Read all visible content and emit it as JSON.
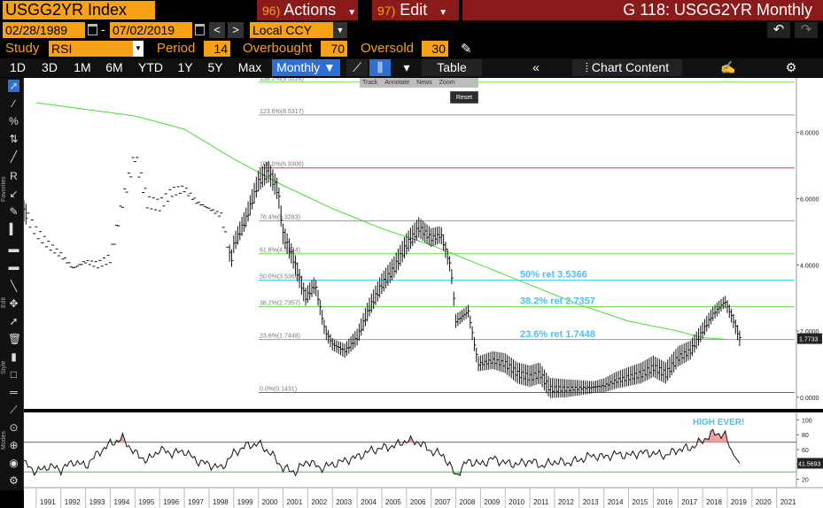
{
  "header": {
    "ticker": "USGG2YR Index",
    "actions_num": "96)",
    "actions_label": "Actions",
    "edit_num": "97)",
    "edit_label": "Edit",
    "graph_title": "G 118: USGG2YR Monthly"
  },
  "dates": {
    "start": "02/28/1989",
    "separator": "-",
    "end": "07/02/2019",
    "currency": "Local CCY"
  },
  "study": {
    "study_label": "Study",
    "study_value": "RSI",
    "period_label": "Period",
    "period_value": "14",
    "overbought_label": "Overbought",
    "overbought_value": "70",
    "oversold_label": "Oversold",
    "oversold_value": "30"
  },
  "toolbar": {
    "periods": [
      "1D",
      "3D",
      "1M",
      "6M",
      "YTD",
      "1Y",
      "5Y",
      "Max"
    ],
    "frequency": "Monthly",
    "table_label": "Table",
    "chart_content_label": "Chart Content"
  },
  "overlay": {
    "items": [
      "Track",
      "Annotate",
      "News",
      "Zoom"
    ],
    "reset": "Reset"
  },
  "left_tools": {
    "sections": [
      "Favorites",
      "Edit",
      "Style",
      "Modes"
    ]
  },
  "chart_data": [
    {
      "type": "line",
      "y_ticks": [
        "0.0000",
        "2.0000",
        "4.0000",
        "6.0000",
        "8.0000"
      ],
      "ylim": [
        -0.35,
        9.65
      ],
      "x_ticks": [
        "1991",
        "1992",
        "1993",
        "1994",
        "1995",
        "1996",
        "1997",
        "1998",
        "1999",
        "2000",
        "2001",
        "2002",
        "2003",
        "2004",
        "2005",
        "2006",
        "2007",
        "2008",
        "2009",
        "2010",
        "2011",
        "2012",
        "2013",
        "2014",
        "2015",
        "2016",
        "2017",
        "2018",
        "2019",
        "2020",
        "2021"
      ],
      "xlim": [
        1990.5,
        2021.8
      ],
      "last_value_label": "1.7733",
      "last_value": 1.7733,
      "fib_levels": [
        {
          "label": "138.2%(9.5226)",
          "value": 9.5226,
          "color": "#66dd44"
        },
        {
          "label": "123.6%(8.5317)",
          "value": 8.5317,
          "color": "#999999"
        },
        {
          "label": "100.0%(6.9300)",
          "value": 6.93,
          "color": "#ee3333"
        },
        {
          "label": "76.4%(5.3283)",
          "value": 5.3283,
          "color": "#999999"
        },
        {
          "label": "61.8%(4.3374)",
          "value": 4.3374,
          "color": "#66dd44"
        },
        {
          "label": "50.0%(3.5366)",
          "value": 3.5366,
          "color": "#33ccee"
        },
        {
          "label": "38.2%(2.7357)",
          "value": 2.7357,
          "color": "#66dd44"
        },
        {
          "label": "23.6%(1.7448)",
          "value": 1.7448,
          "color": "#999999"
        },
        {
          "label": "0.0%(0.1431)",
          "value": 0.1431,
          "color": "#ee3333"
        }
      ],
      "annotations": [
        {
          "text": "50% ret 3.5366",
          "x": 2010.6,
          "y": 3.62
        },
        {
          "text": "38.2% ret 2.7357",
          "x": 2010.6,
          "y": 2.82
        },
        {
          "text": "23.6% ret 1.7448",
          "x": 2010.6,
          "y": 1.82
        }
      ],
      "price_series": [
        {
          "x": 1989.0,
          "y": 7.0
        },
        {
          "x": 1989.5,
          "y": 6.8
        },
        {
          "x": 1990.0,
          "y": 6.4
        },
        {
          "x": 1990.5,
          "y": 5.6
        },
        {
          "x": 1991.0,
          "y": 5.0
        },
        {
          "x": 1991.5,
          "y": 4.6
        },
        {
          "x": 1992.0,
          "y": 4.3
        },
        {
          "x": 1992.5,
          "y": 3.9
        },
        {
          "x": 1993.0,
          "y": 4.1
        },
        {
          "x": 1993.5,
          "y": 4.0
        },
        {
          "x": 1994.0,
          "y": 4.2
        },
        {
          "x": 1994.5,
          "y": 5.9
        },
        {
          "x": 1995.0,
          "y": 7.3
        },
        {
          "x": 1995.5,
          "y": 5.9
        },
        {
          "x": 1996.0,
          "y": 5.8
        },
        {
          "x": 1996.5,
          "y": 6.2
        },
        {
          "x": 1997.0,
          "y": 6.3
        },
        {
          "x": 1997.5,
          "y": 5.9
        },
        {
          "x": 1998.0,
          "y": 5.7
        },
        {
          "x": 1998.5,
          "y": 5.5
        },
        {
          "x": 1998.9,
          "y": 4.1
        },
        {
          "x": 1999.0,
          "y": 4.6
        },
        {
          "x": 1999.5,
          "y": 5.4
        },
        {
          "x": 2000.0,
          "y": 6.5
        },
        {
          "x": 2000.4,
          "y": 6.8
        },
        {
          "x": 2000.8,
          "y": 6.2
        },
        {
          "x": 2001.0,
          "y": 4.9
        },
        {
          "x": 2001.4,
          "y": 4.2
        },
        {
          "x": 2001.9,
          "y": 3.0
        },
        {
          "x": 2002.3,
          "y": 3.4
        },
        {
          "x": 2002.7,
          "y": 2.0
        },
        {
          "x": 2003.0,
          "y": 1.6
        },
        {
          "x": 2003.5,
          "y": 1.4
        },
        {
          "x": 2004.0,
          "y": 1.8
        },
        {
          "x": 2004.5,
          "y": 2.7
        },
        {
          "x": 2005.0,
          "y": 3.4
        },
        {
          "x": 2005.5,
          "y": 3.9
        },
        {
          "x": 2006.0,
          "y": 4.6
        },
        {
          "x": 2006.5,
          "y": 5.1
        },
        {
          "x": 2007.0,
          "y": 4.8
        },
        {
          "x": 2007.4,
          "y": 4.9
        },
        {
          "x": 2007.8,
          "y": 3.9
        },
        {
          "x": 2008.0,
          "y": 2.3
        },
        {
          "x": 2008.5,
          "y": 2.6
        },
        {
          "x": 2008.9,
          "y": 1.0
        },
        {
          "x": 2009.5,
          "y": 1.1
        },
        {
          "x": 2010.0,
          "y": 1.0
        },
        {
          "x": 2010.5,
          "y": 0.7
        },
        {
          "x": 2011.0,
          "y": 0.6
        },
        {
          "x": 2011.4,
          "y": 0.7
        },
        {
          "x": 2011.8,
          "y": 0.25
        },
        {
          "x": 2012.5,
          "y": 0.25
        },
        {
          "x": 2013.5,
          "y": 0.3
        },
        {
          "x": 2014.0,
          "y": 0.35
        },
        {
          "x": 2014.5,
          "y": 0.5
        },
        {
          "x": 2015.0,
          "y": 0.6
        },
        {
          "x": 2015.5,
          "y": 0.7
        },
        {
          "x": 2016.0,
          "y": 0.9
        },
        {
          "x": 2016.5,
          "y": 0.7
        },
        {
          "x": 2017.0,
          "y": 1.2
        },
        {
          "x": 2017.5,
          "y": 1.4
        },
        {
          "x": 2018.0,
          "y": 2.0
        },
        {
          "x": 2018.4,
          "y": 2.5
        },
        {
          "x": 2018.9,
          "y": 2.9
        },
        {
          "x": 2019.2,
          "y": 2.4
        },
        {
          "x": 2019.5,
          "y": 1.77
        }
      ],
      "moving_average": [
        {
          "x": 1991.0,
          "y": 8.9
        },
        {
          "x": 1993.0,
          "y": 8.7
        },
        {
          "x": 1995.0,
          "y": 8.5
        },
        {
          "x": 1997.0,
          "y": 8.1
        },
        {
          "x": 1999.0,
          "y": 7.2
        },
        {
          "x": 2001.0,
          "y": 6.4
        },
        {
          "x": 2003.0,
          "y": 5.7
        },
        {
          "x": 2005.0,
          "y": 5.1
        },
        {
          "x": 2007.0,
          "y": 4.6
        },
        {
          "x": 2009.0,
          "y": 4.0
        },
        {
          "x": 2011.0,
          "y": 3.4
        },
        {
          "x": 2013.0,
          "y": 2.8
        },
        {
          "x": 2015.0,
          "y": 2.3
        },
        {
          "x": 2017.0,
          "y": 2.0
        },
        {
          "x": 2018.0,
          "y": 1.8
        },
        {
          "x": 2019.0,
          "y": 1.75
        }
      ]
    },
    {
      "type": "line",
      "title": "RSI",
      "y_ticks": [
        "20",
        "40",
        "60",
        "80",
        "100"
      ],
      "ylim": [
        10,
        110
      ],
      "overbought": 70,
      "oversold": 30,
      "last_value_label": "41.5693",
      "last_value": 41.5693,
      "annotation": "HIGH EVER!",
      "rsi_series": [
        {
          "x": 1989.0,
          "y": 40
        },
        {
          "x": 1989.5,
          "y": 45
        },
        {
          "x": 1990.0,
          "y": 55
        },
        {
          "x": 1990.5,
          "y": 42
        },
        {
          "x": 1991.0,
          "y": 30
        },
        {
          "x": 1991.5,
          "y": 38
        },
        {
          "x": 1992.0,
          "y": 33
        },
        {
          "x": 1992.5,
          "y": 44
        },
        {
          "x": 1993.0,
          "y": 38
        },
        {
          "x": 1993.5,
          "y": 55
        },
        {
          "x": 1994.0,
          "y": 68
        },
        {
          "x": 1994.5,
          "y": 75
        },
        {
          "x": 1995.0,
          "y": 55
        },
        {
          "x": 1995.5,
          "y": 45
        },
        {
          "x": 1996.0,
          "y": 60
        },
        {
          "x": 1996.5,
          "y": 55
        },
        {
          "x": 1997.0,
          "y": 58
        },
        {
          "x": 1997.5,
          "y": 45
        },
        {
          "x": 1998.0,
          "y": 40
        },
        {
          "x": 1998.5,
          "y": 35
        },
        {
          "x": 1999.0,
          "y": 55
        },
        {
          "x": 1999.5,
          "y": 65
        },
        {
          "x": 2000.0,
          "y": 68
        },
        {
          "x": 2000.5,
          "y": 55
        },
        {
          "x": 2001.0,
          "y": 35
        },
        {
          "x": 2001.5,
          "y": 30
        },
        {
          "x": 2002.0,
          "y": 45
        },
        {
          "x": 2002.5,
          "y": 35
        },
        {
          "x": 2003.0,
          "y": 40
        },
        {
          "x": 2003.5,
          "y": 45
        },
        {
          "x": 2004.0,
          "y": 50
        },
        {
          "x": 2004.5,
          "y": 58
        },
        {
          "x": 2005.0,
          "y": 62
        },
        {
          "x": 2005.5,
          "y": 65
        },
        {
          "x": 2006.0,
          "y": 72
        },
        {
          "x": 2006.5,
          "y": 70
        },
        {
          "x": 2007.0,
          "y": 58
        },
        {
          "x": 2007.5,
          "y": 52
        },
        {
          "x": 2008.0,
          "y": 25
        },
        {
          "x": 2008.5,
          "y": 45
        },
        {
          "x": 2009.0,
          "y": 40
        },
        {
          "x": 2009.5,
          "y": 48
        },
        {
          "x": 2010.0,
          "y": 42
        },
        {
          "x": 2010.5,
          "y": 40
        },
        {
          "x": 2011.0,
          "y": 45
        },
        {
          "x": 2011.5,
          "y": 38
        },
        {
          "x": 2012.0,
          "y": 44
        },
        {
          "x": 2012.5,
          "y": 42
        },
        {
          "x": 2013.0,
          "y": 46
        },
        {
          "x": 2013.5,
          "y": 52
        },
        {
          "x": 2014.0,
          "y": 50
        },
        {
          "x": 2014.5,
          "y": 54
        },
        {
          "x": 2015.0,
          "y": 52
        },
        {
          "x": 2015.5,
          "y": 56
        },
        {
          "x": 2016.0,
          "y": 55
        },
        {
          "x": 2016.5,
          "y": 52
        },
        {
          "x": 2017.0,
          "y": 60
        },
        {
          "x": 2017.5,
          "y": 62
        },
        {
          "x": 2018.0,
          "y": 72
        },
        {
          "x": 2018.4,
          "y": 82
        },
        {
          "x": 2018.9,
          "y": 80
        },
        {
          "x": 2019.2,
          "y": 55
        },
        {
          "x": 2019.5,
          "y": 41.57
        }
      ]
    }
  ]
}
